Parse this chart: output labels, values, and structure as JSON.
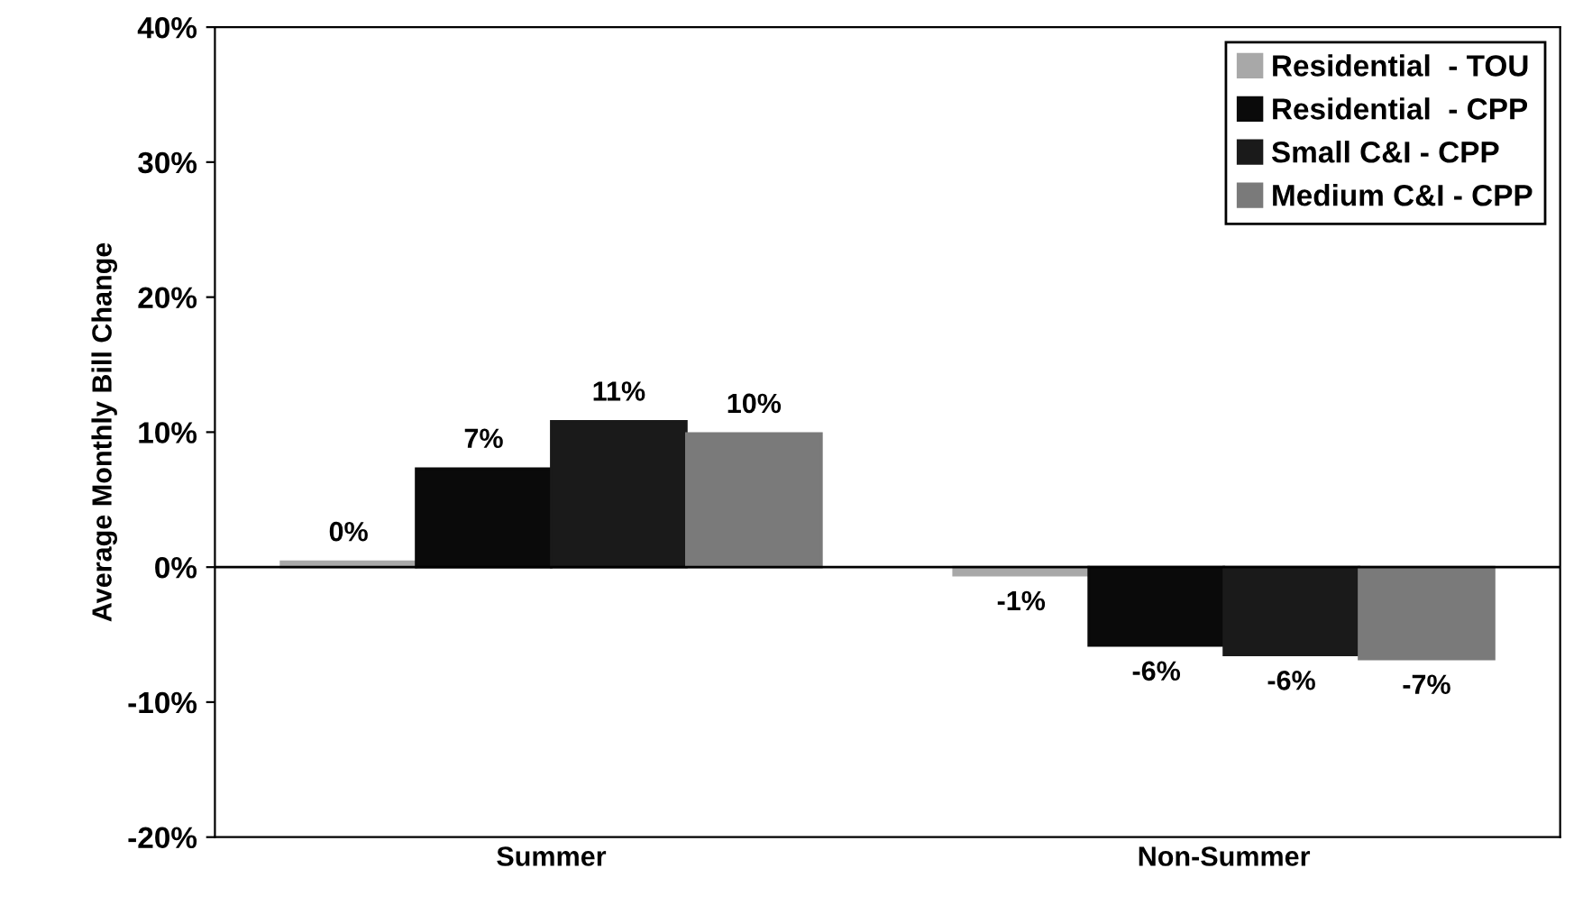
{
  "chart_data": {
    "type": "bar",
    "ylabel": "Average Monthly Bill Change",
    "categories": [
      "Summer",
      "Non-Summer"
    ],
    "series": [
      {
        "name": "Residential  - TOU",
        "color": "#a8a8a8",
        "values": [
          0.4,
          -0.6
        ],
        "value_labels": [
          "0%",
          "-1%"
        ]
      },
      {
        "name": "Residential  - CPP",
        "color": "#0a0a0a",
        "values": [
          7.3,
          -5.8
        ],
        "value_labels": [
          "7%",
          "-6%"
        ]
      },
      {
        "name": "Small C&I - CPP",
        "color": "#1a1a1a",
        "values": [
          10.8,
          -6.5
        ],
        "value_labels": [
          "11%",
          "-6%"
        ]
      },
      {
        "name": "Medium C&I - CPP",
        "color": "#7a7a7a",
        "values": [
          9.9,
          -6.8
        ],
        "value_labels": [
          "10%",
          "-7%"
        ]
      }
    ],
    "ylim": [
      -20,
      40
    ],
    "yticks": [
      {
        "value": -20,
        "label": "-20%"
      },
      {
        "value": -10,
        "label": "-10%"
      },
      {
        "value": 0,
        "label": "0%"
      },
      {
        "value": 10,
        "label": "10%"
      },
      {
        "value": 20,
        "label": "20%"
      },
      {
        "value": 30,
        "label": "30%"
      },
      {
        "value": 40,
        "label": "40%"
      }
    ],
    "ref_lines": [
      {
        "axis": "y",
        "value": 0,
        "color": "#000000"
      }
    ],
    "legend": "top right",
    "grid": false
  }
}
